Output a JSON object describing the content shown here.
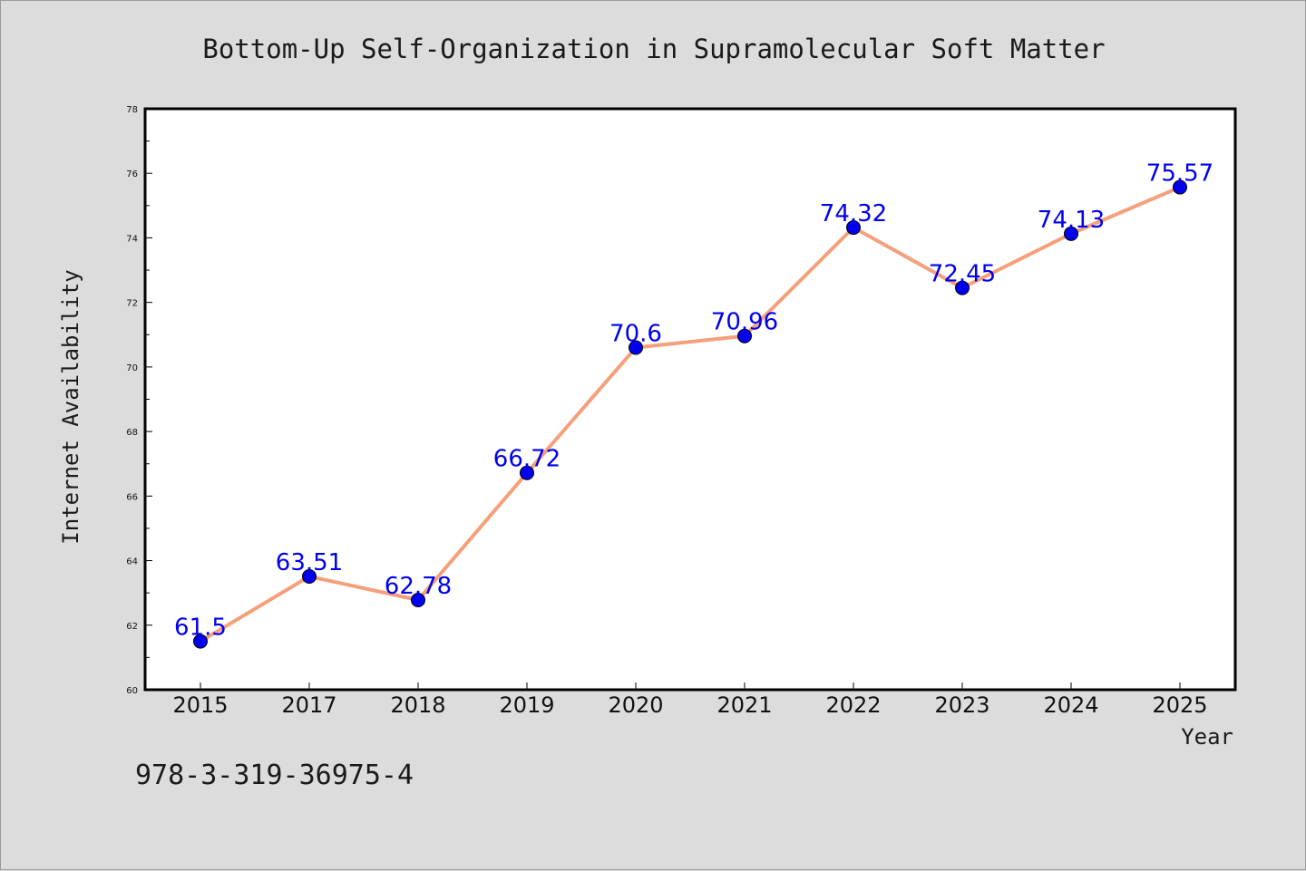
{
  "chart_data": {
    "type": "line",
    "title": "Bottom-Up Self-Organization in Supramolecular Soft Matter",
    "xlabel": "Year",
    "ylabel": "Internet Availability",
    "categories": [
      "2015",
      "2017",
      "2018",
      "2019",
      "2020",
      "2021",
      "2022",
      "2023",
      "2024",
      "2025"
    ],
    "series": [
      {
        "values": [
          61.5,
          63.51,
          62.78,
          66.72,
          70.6,
          70.96,
          74.32,
          72.45,
          74.13,
          75.57
        ],
        "labels": [
          "61.5",
          "63.51",
          "62.78",
          "66.72",
          "70.6",
          "70.96",
          "74.32",
          "72.45",
          "74.13",
          "75.57"
        ],
        "line_color": "#f4a07a",
        "marker_color": "#0000ee"
      }
    ],
    "ylim": [
      60,
      78
    ],
    "yticks": [
      60,
      62,
      64,
      66,
      68,
      70,
      72,
      74,
      76,
      78
    ],
    "grid": false,
    "legend": "none"
  },
  "footer": {
    "isbn": "978-3-319-36975-4"
  }
}
